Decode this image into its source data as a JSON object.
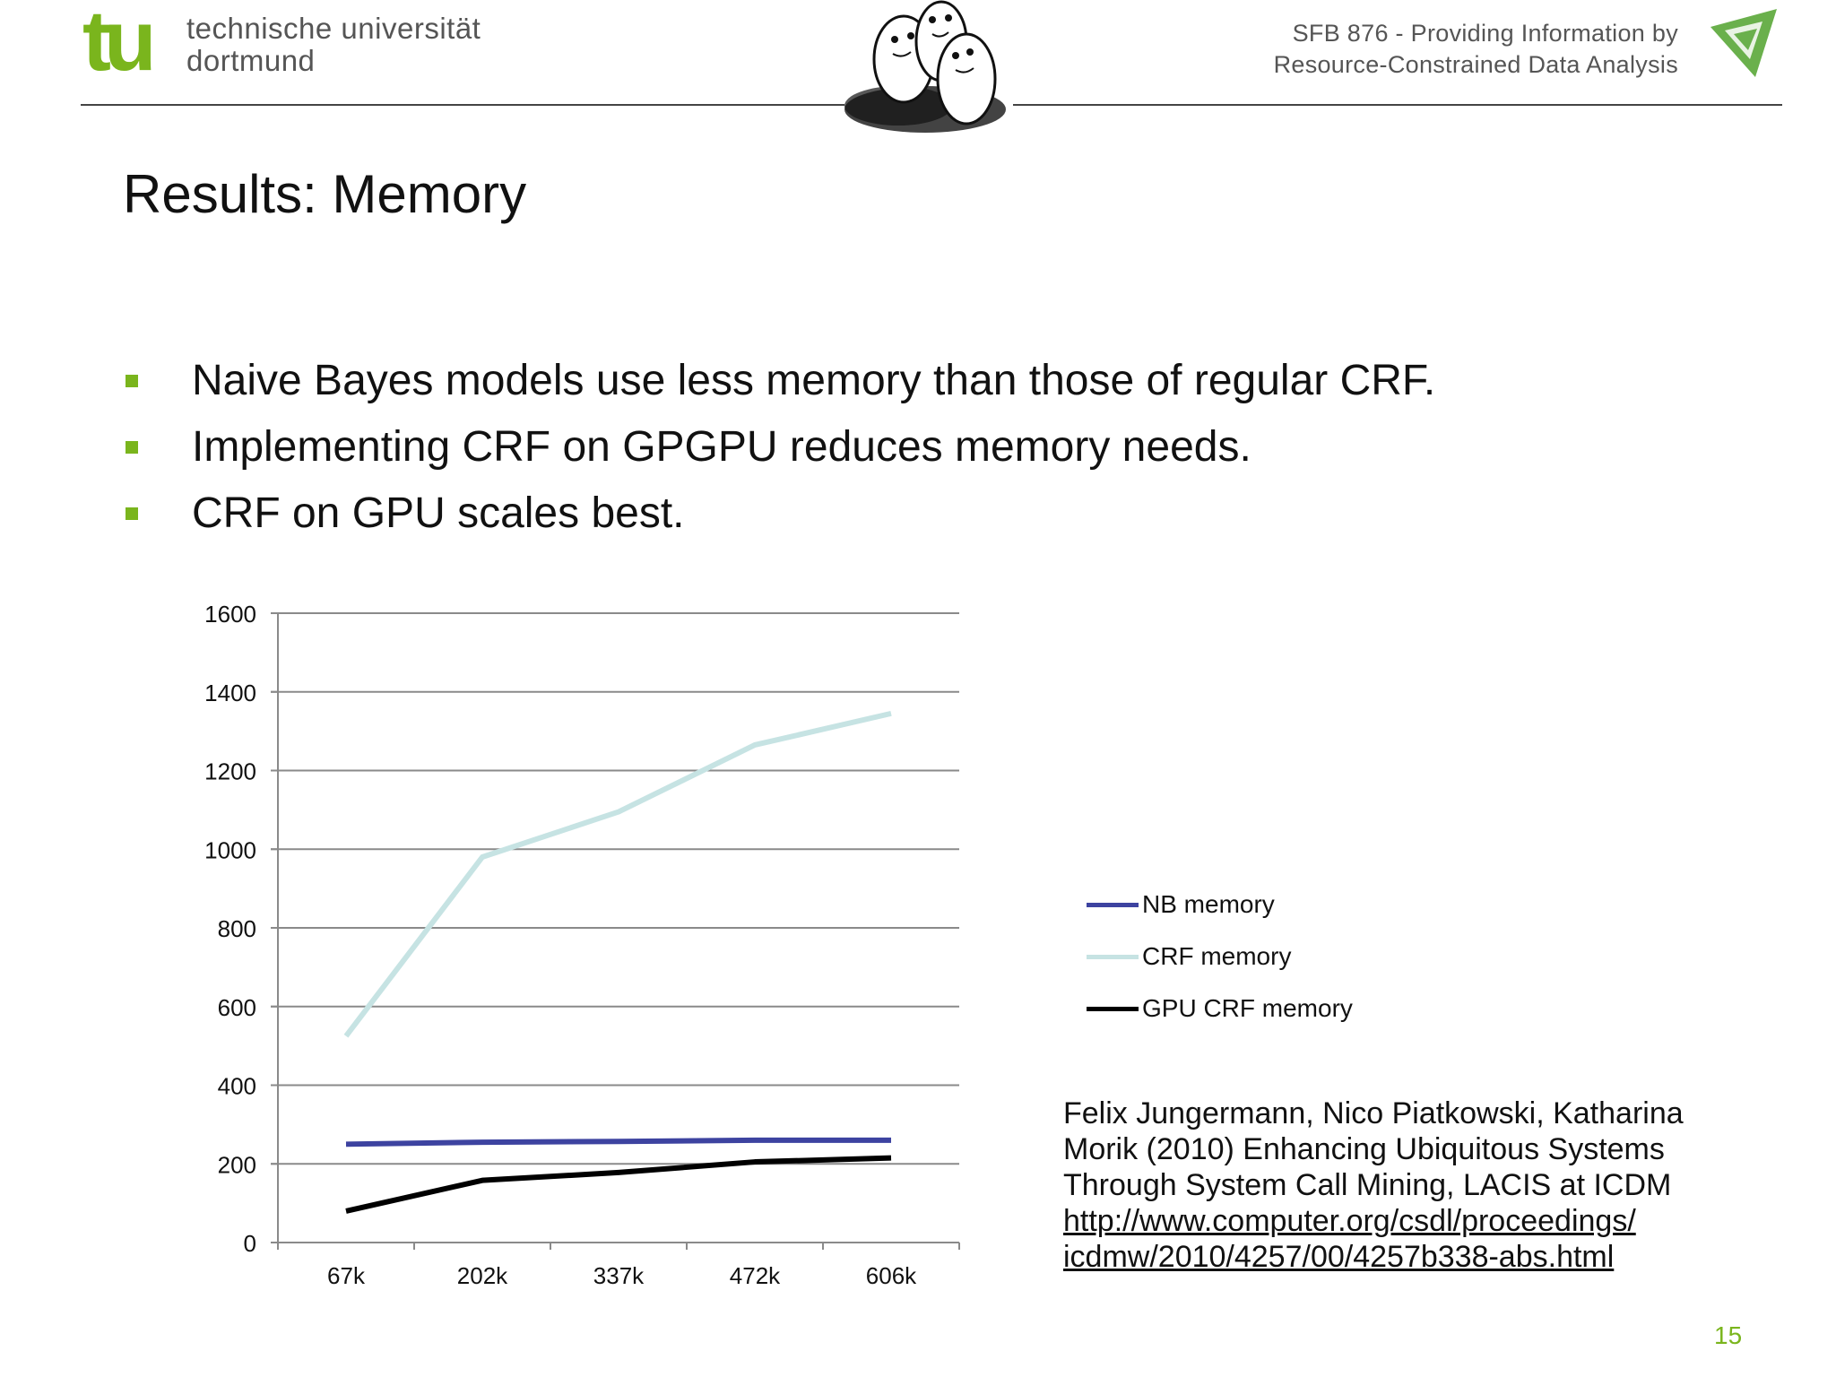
{
  "header": {
    "tu_logo_text": "tu",
    "university_name_line1": "technische universität",
    "university_name_line2": "dortmund",
    "sfb_line1": "SFB 876  -  Providing Information by",
    "sfb_line2": "Resource-Constrained Data Analysis",
    "tu_color": "#7ab51d",
    "sfb_logo_color": "#6ab04c"
  },
  "slide": {
    "title": "Results: Memory",
    "bullets": [
      "Naive Bayes models use less memory than those of regular CRF.",
      "Implementing CRF on GPGPU reduces memory needs.",
      "CRF on GPU scales best."
    ],
    "bullet_color": "#7ab51d",
    "citation": {
      "line1": "Felix Jungermann, Nico Piatkowski, Katharina",
      "line2": "Morik (2010) Enhancing Ubiquitous Systems",
      "line3": "Through System Call Mining, LACIS at ICDM",
      "link_line1": "http://www.computer.org/csdl/proceedings/",
      "link_line2": "icdmw/2010/4257/00/4257b338-abs.html"
    },
    "page_number": "15"
  },
  "chart_data": {
    "type": "line",
    "title": "",
    "xlabel": "",
    "ylabel": "",
    "categories": [
      "67k",
      "202k",
      "337k",
      "472k",
      "606k"
    ],
    "ylim": [
      0,
      1600
    ],
    "yticks": [
      0,
      200,
      400,
      600,
      800,
      1000,
      1200,
      1400,
      1600
    ],
    "grid": true,
    "legend_position": "right",
    "series": [
      {
        "name": "NB memory",
        "color": "#3d43a0",
        "values": [
          250,
          255,
          257,
          260,
          260
        ]
      },
      {
        "name": "CRF memory",
        "color": "#c6e3e3",
        "values": [
          525,
          980,
          1095,
          1265,
          1345
        ]
      },
      {
        "name": "GPU CRF memory",
        "color": "#000000",
        "values": [
          80,
          158,
          178,
          205,
          215
        ]
      }
    ]
  }
}
